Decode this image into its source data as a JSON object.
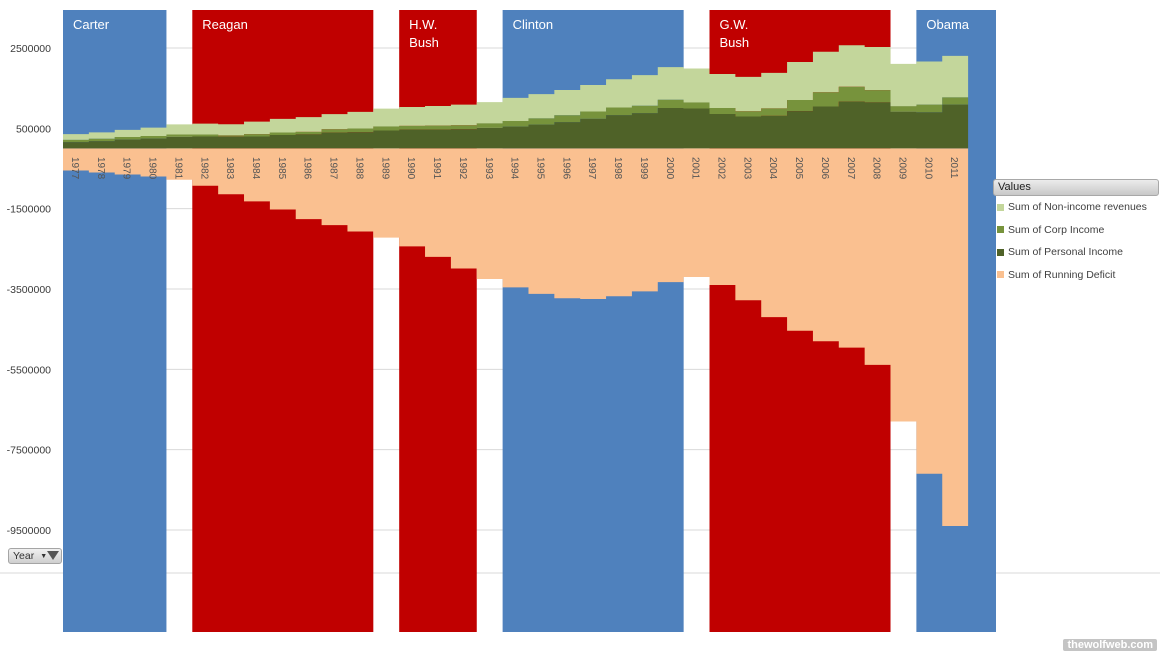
{
  "chart_data": {
    "type": "area",
    "title": "",
    "xlabel": "",
    "ylabel": "",
    "categories": [
      "1977",
      "1978",
      "1979",
      "1980",
      "1981",
      "1982",
      "1983",
      "1984",
      "1985",
      "1986",
      "1987",
      "1988",
      "1989",
      "1990",
      "1991",
      "1992",
      "1993",
      "1994",
      "1995",
      "1996",
      "1997",
      "1998",
      "1999",
      "2000",
      "2001",
      "2002",
      "2003",
      "2004",
      "2005",
      "2006",
      "2007",
      "2008",
      "2009",
      "2010",
      "2011"
    ],
    "series": [
      {
        "name": "Sum of Personal Income",
        "color": "#4f6228",
        "values": [
          158000,
          181000,
          218000,
          244000,
          286000,
          298000,
          289000,
          298000,
          335000,
          349000,
          393000,
          401000,
          446000,
          467000,
          468000,
          476000,
          510000,
          543000,
          591000,
          656000,
          737000,
          829000,
          879000,
          1005000,
          994000,
          858000,
          794000,
          809000,
          927000,
          1044000,
          1164000,
          1146000,
          915000,
          899000,
          1091000
        ]
      },
      {
        "name": "Sum of Corp Income",
        "color": "#77933c",
        "values": [
          55000,
          60000,
          66000,
          65000,
          61000,
          49000,
          37000,
          57000,
          61000,
          64000,
          84000,
          94000,
          103000,
          94000,
          98000,
          100000,
          118000,
          140000,
          157000,
          171000,
          182000,
          189000,
          184000,
          207000,
          151000,
          148000,
          132000,
          189000,
          278000,
          354000,
          370000,
          304000,
          138000,
          191000,
          181000
        ]
      },
      {
        "name": "Sum of Non-income revenues",
        "color": "#c3d69b",
        "values": [
          142000,
          158000,
          179000,
          208000,
          253000,
          271000,
          275000,
          311000,
          338000,
          366000,
          377000,
          414000,
          442000,
          471000,
          489000,
          515000,
          525000,
          575000,
          604000,
          626000,
          660000,
          704000,
          763000,
          813000,
          846000,
          847000,
          856000,
          882000,
          948000,
          1009000,
          1034000,
          1074000,
          1052000,
          1073000,
          1032000
        ]
      },
      {
        "name": "Sum of Running Deficit",
        "color": "#fac090",
        "values": [
          -550000,
          -600000,
          -650000,
          -700000,
          -780000,
          -930000,
          -1140000,
          -1320000,
          -1520000,
          -1760000,
          -1910000,
          -2070000,
          -2220000,
          -2440000,
          -2700000,
          -2990000,
          -3250000,
          -3460000,
          -3620000,
          -3730000,
          -3750000,
          -3680000,
          -3560000,
          -3330000,
          -3200000,
          -3400000,
          -3780000,
          -4200000,
          -4540000,
          -4800000,
          -4960000,
          -5390000,
          -6800000,
          -8100000,
          -9400000
        ]
      }
    ],
    "presidents": [
      {
        "name": "Carter",
        "start": 1977,
        "end": 1980,
        "party": "D",
        "floor": -550000
      },
      {
        "name": "Reagan",
        "start": 1982,
        "end": 1988,
        "party": "R",
        "floor": -930000
      },
      {
        "name": "H.W. Bush",
        "start": 1990,
        "end": 1992,
        "party": "R",
        "floor": -2440000
      },
      {
        "name": "Clinton",
        "start": 1994,
        "end": 2000,
        "party": "D",
        "floor": -3330000
      },
      {
        "name": "G.W. Bush",
        "start": 2002,
        "end": 2008,
        "party": "R",
        "floor": -3400000
      },
      {
        "name": "Obama",
        "start": 2010,
        "end": 2012,
        "party": "D",
        "floor": -8100000
      }
    ],
    "colors": {
      "D": "#4f81bd",
      "R": "#c00000"
    },
    "ylim": [
      -12000000,
      3000000
    ],
    "yticks": [
      2500000,
      500000,
      -1500000,
      -3500000,
      -5500000,
      -7500000,
      -9500000
    ],
    "ytick_labels": [
      "2500000",
      "500000",
      "-1500000",
      "-3500000",
      "-5500000",
      "-7500000",
      "-9500000"
    ],
    "grid": true,
    "legend_position": "right"
  },
  "legend": {
    "title": "Values"
  },
  "filter": {
    "label": "Year"
  },
  "watermark": "thewolfweb.com"
}
